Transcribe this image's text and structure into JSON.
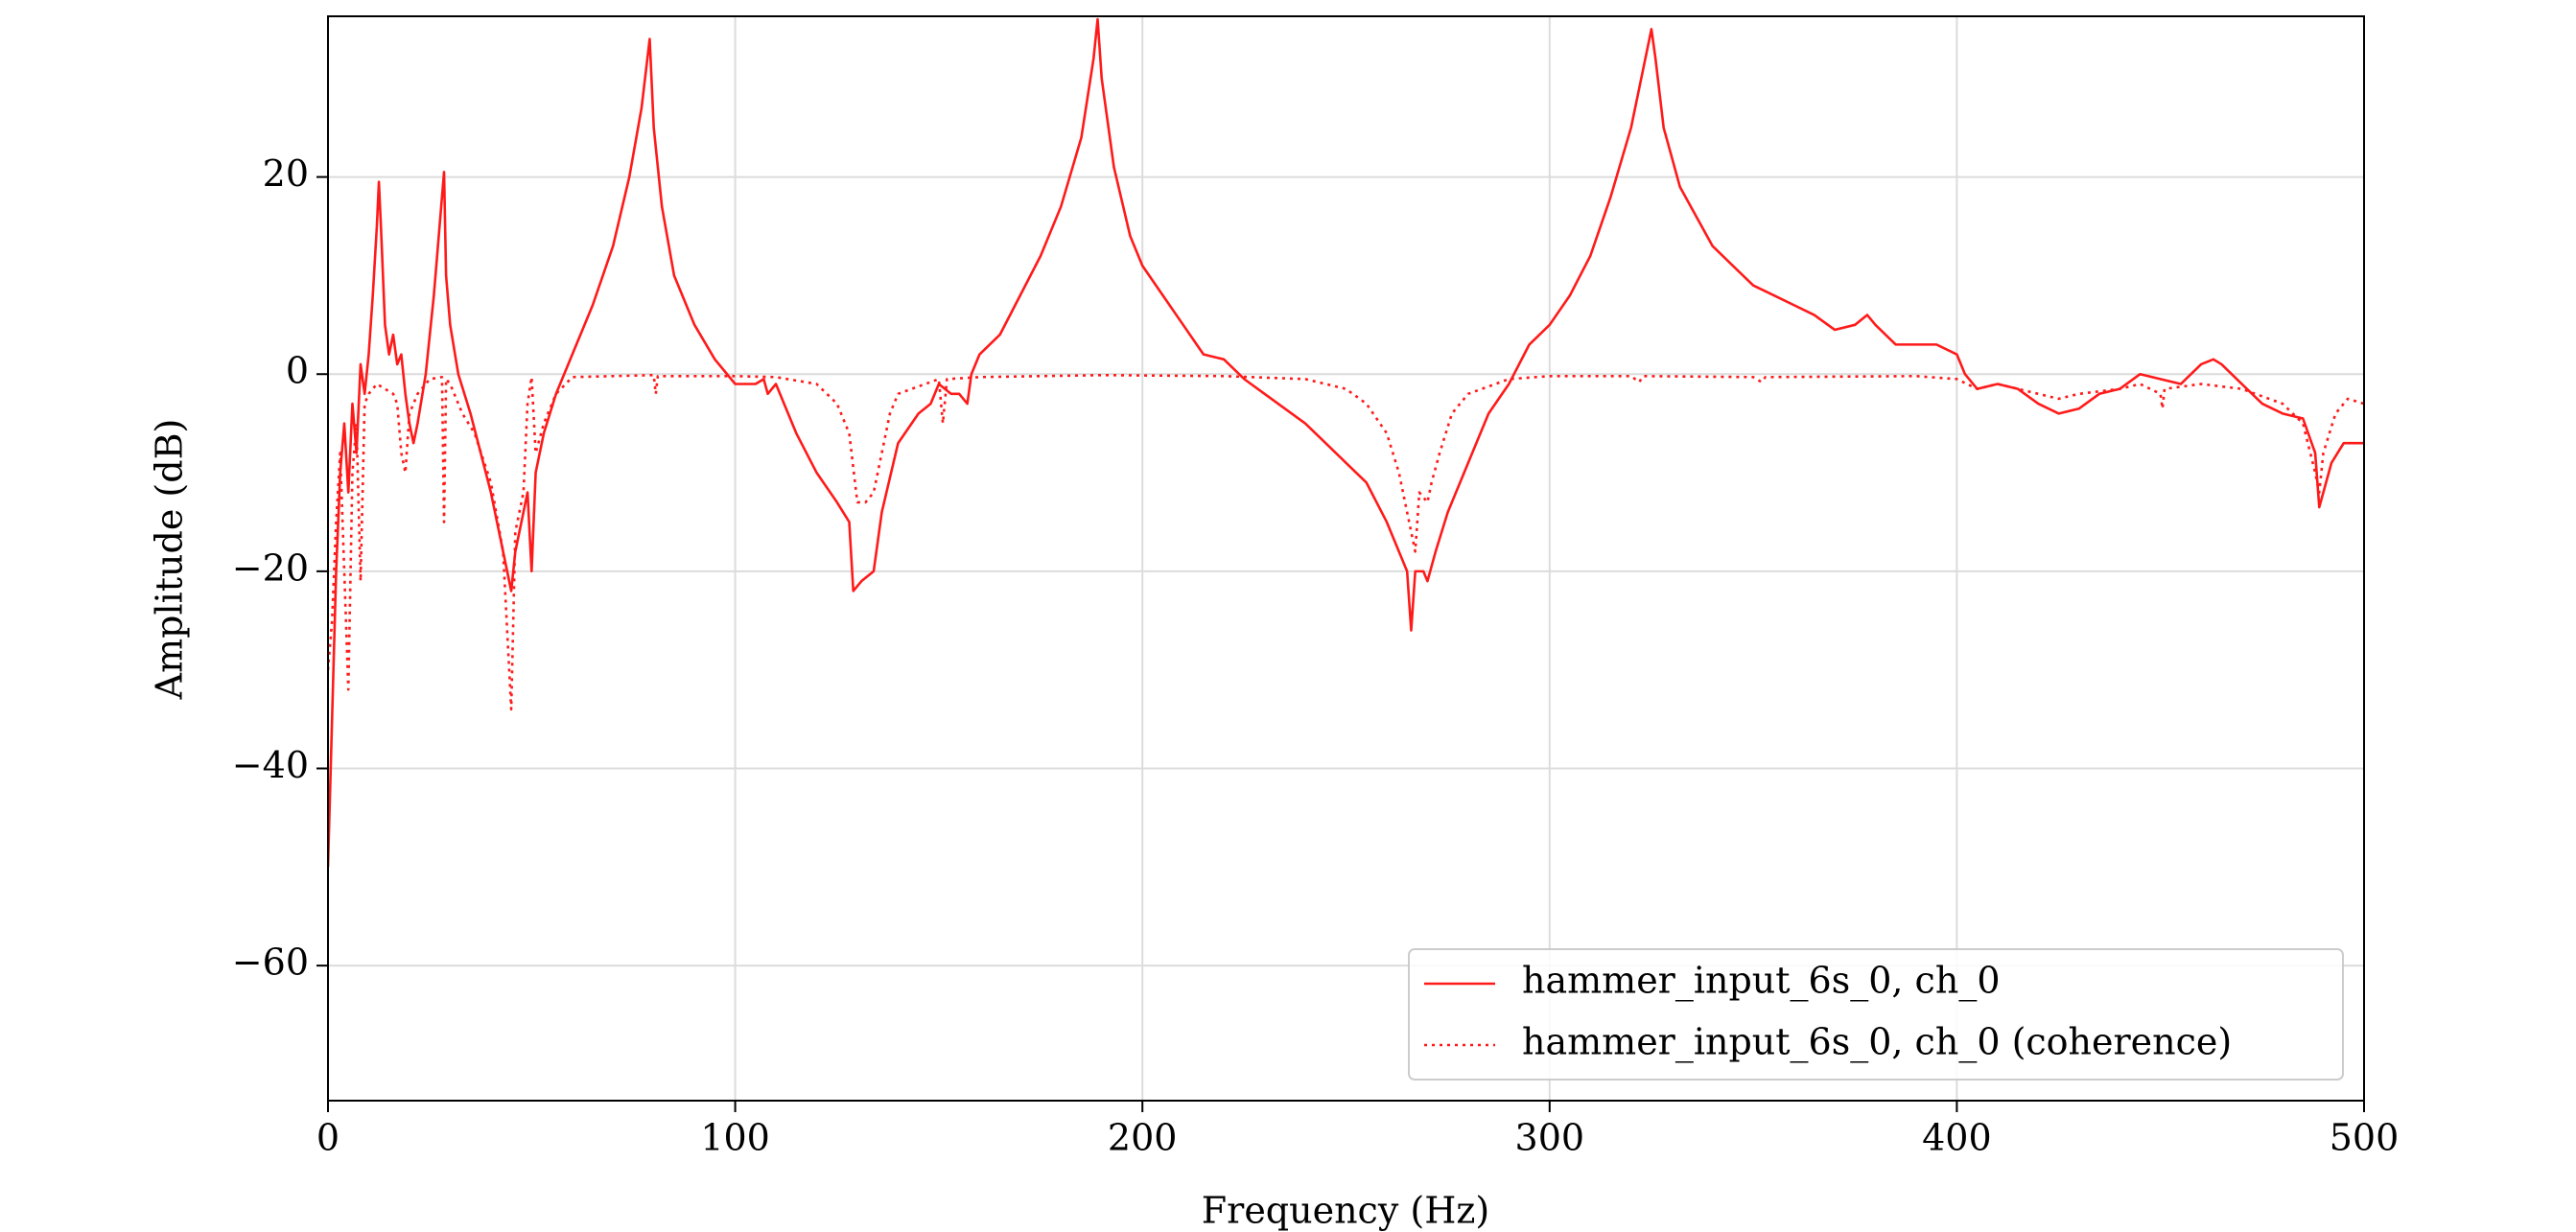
{
  "chart_data": {
    "type": "line",
    "xlabel": "Frequency (Hz)",
    "ylabel": "Amplitude (dB)",
    "xlim": [
      0,
      500
    ],
    "ylim": [
      -73.7,
      36.3
    ],
    "xticks": [
      0,
      100,
      200,
      300,
      400,
      500
    ],
    "yticks": [
      {
        "value": -60,
        "label": "−60"
      },
      {
        "value": -40,
        "label": "−40"
      },
      {
        "value": -20,
        "label": "−20"
      },
      0,
      20
    ],
    "grid": true,
    "legend": "lower right",
    "series": [
      {
        "name": "hammer_input_6s_0, ch_0",
        "color": "#ff1a1a",
        "style": "solid",
        "x": [
          0,
          1,
          2,
          3,
          4,
          5,
          6,
          7,
          8,
          9,
          10,
          11,
          12,
          12.5,
          13,
          14,
          15,
          16,
          17,
          18,
          19,
          20,
          21,
          22,
          24,
          26,
          28,
          28.5,
          29,
          30,
          32,
          35,
          40,
          43,
          45,
          46,
          48,
          49,
          50,
          51,
          53,
          56,
          60,
          65,
          70,
          74,
          77,
          79,
          80,
          82,
          85,
          90,
          95,
          100,
          105,
          107,
          108,
          110,
          112,
          115,
          120,
          125,
          128,
          129,
          131,
          134,
          136,
          140,
          145,
          148,
          150,
          153,
          155,
          157,
          158,
          160,
          165,
          170,
          175,
          180,
          185,
          188,
          189,
          190,
          193,
          197,
          200,
          205,
          210,
          215,
          220,
          225,
          230,
          240,
          245,
          250,
          255,
          260,
          265,
          266,
          267,
          269,
          270,
          272,
          275,
          280,
          285,
          290,
          295,
          300,
          305,
          310,
          315,
          320,
          323,
          325,
          326,
          328,
          332,
          336,
          340,
          345,
          350,
          355,
          360,
          365,
          370,
          375,
          378,
          380,
          385,
          390,
          395,
          400,
          402,
          405,
          410,
          415,
          420,
          425,
          430,
          435,
          440,
          445,
          450,
          455,
          460,
          463,
          465,
          470,
          475,
          480,
          485,
          488,
          489,
          490,
          492,
          495,
          500
        ],
        "values": [
          -50,
          -35,
          -20,
          -10,
          -5,
          -12,
          -3,
          -8,
          1,
          -2,
          2,
          8,
          15,
          19.5,
          15,
          5,
          2,
          4,
          1,
          2,
          -2,
          -5,
          -7,
          -5,
          0,
          8,
          18,
          20.5,
          10,
          5,
          0,
          -4,
          -12,
          -18,
          -22,
          -18,
          -14,
          -12,
          -20,
          -10,
          -6,
          -2,
          2,
          7,
          13,
          20,
          27,
          34,
          25,
          17,
          10,
          5,
          1.5,
          -1,
          -1,
          -0.5,
          -2,
          -1,
          -3,
          -6,
          -10,
          -13,
          -15,
          -22,
          -21,
          -20,
          -14,
          -7,
          -4,
          -3,
          -1,
          -2,
          -2,
          -3,
          0,
          2,
          4,
          8,
          12,
          17,
          24,
          32,
          36,
          30,
          21,
          14,
          11,
          8,
          5,
          2,
          1.5,
          -0.5,
          -2,
          -5,
          -7,
          -9,
          -11,
          -15,
          -20,
          -26,
          -20,
          -20,
          -21,
          -18,
          -14,
          -9,
          -4,
          -1,
          3,
          5,
          8,
          12,
          18,
          25,
          31,
          35,
          32,
          25,
          19,
          16,
          13,
          11,
          9,
          8,
          7,
          6,
          4.5,
          5,
          6,
          5,
          3,
          3,
          3,
          2,
          0,
          -1.5,
          -1,
          -1.5,
          -3,
          -4,
          -3.5,
          -2,
          -1.5,
          0,
          -0.5,
          -1,
          1,
          1.5,
          1,
          -1,
          -3,
          -4,
          -4.5,
          -8,
          -13.5,
          -12,
          -9,
          -7,
          -7
        ]
      },
      {
        "name": "hammer_input_6s_0, ch_0 (coherence)",
        "color": "#ff1a1a",
        "style": "dotted",
        "x": [
          0,
          1,
          2,
          3,
          4,
          5,
          6,
          7,
          8,
          9,
          10,
          12,
          14,
          16,
          17,
          18,
          19,
          20,
          22,
          25,
          28,
          28.5,
          29,
          30,
          33,
          36,
          40,
          43,
          45,
          46,
          48,
          49,
          50,
          51,
          53,
          56,
          60,
          70,
          80,
          80.5,
          81,
          100,
          110,
          120,
          125,
          128,
          130,
          132,
          134,
          136,
          138,
          140,
          150,
          151,
          152,
          160,
          190,
          220,
          240,
          250,
          255,
          260,
          263,
          265,
          267,
          268,
          270,
          271,
          273,
          276,
          280,
          290,
          300,
          320,
          322,
          323,
          350,
          352,
          353,
          390,
          400,
          405,
          410,
          420,
          425,
          430,
          440,
          445,
          450,
          450.5,
          451,
          460,
          470,
          480,
          485,
          488,
          489,
          490,
          493,
          496,
          500
        ],
        "values": [
          -30,
          -25,
          -15,
          -8,
          -20,
          -32,
          -10,
          -5,
          -21,
          -3,
          -2,
          -1,
          -1.5,
          -2,
          -3,
          -8,
          -10,
          -4,
          -2,
          -0.5,
          -0.3,
          -15,
          -0.5,
          -1,
          -4,
          -6,
          -11,
          -18,
          -34,
          -16,
          -12,
          -3,
          -0.3,
          -8,
          -5,
          -2,
          -0.3,
          -0.2,
          -0.1,
          -2,
          -0.2,
          -0.2,
          -0.3,
          -1,
          -3,
          -6,
          -13,
          -13,
          -12,
          -8,
          -4,
          -2,
          -0.5,
          -5,
          -0.5,
          -0.3,
          -0.1,
          -0.2,
          -0.5,
          -1.5,
          -3,
          -6,
          -10,
          -14,
          -18,
          -12,
          -13,
          -11,
          -8,
          -4,
          -2,
          -0.5,
          -0.2,
          -0.2,
          -0.8,
          -0.2,
          -0.3,
          -0.8,
          -0.3,
          -0.2,
          -0.5,
          -1.5,
          -1,
          -2,
          -2.5,
          -2,
          -1.5,
          -1,
          -2,
          -3.5,
          -1.5,
          -1,
          -1.5,
          -3,
          -5,
          -10,
          -12,
          -8,
          -4,
          -2.5,
          -3
        ]
      }
    ]
  }
}
